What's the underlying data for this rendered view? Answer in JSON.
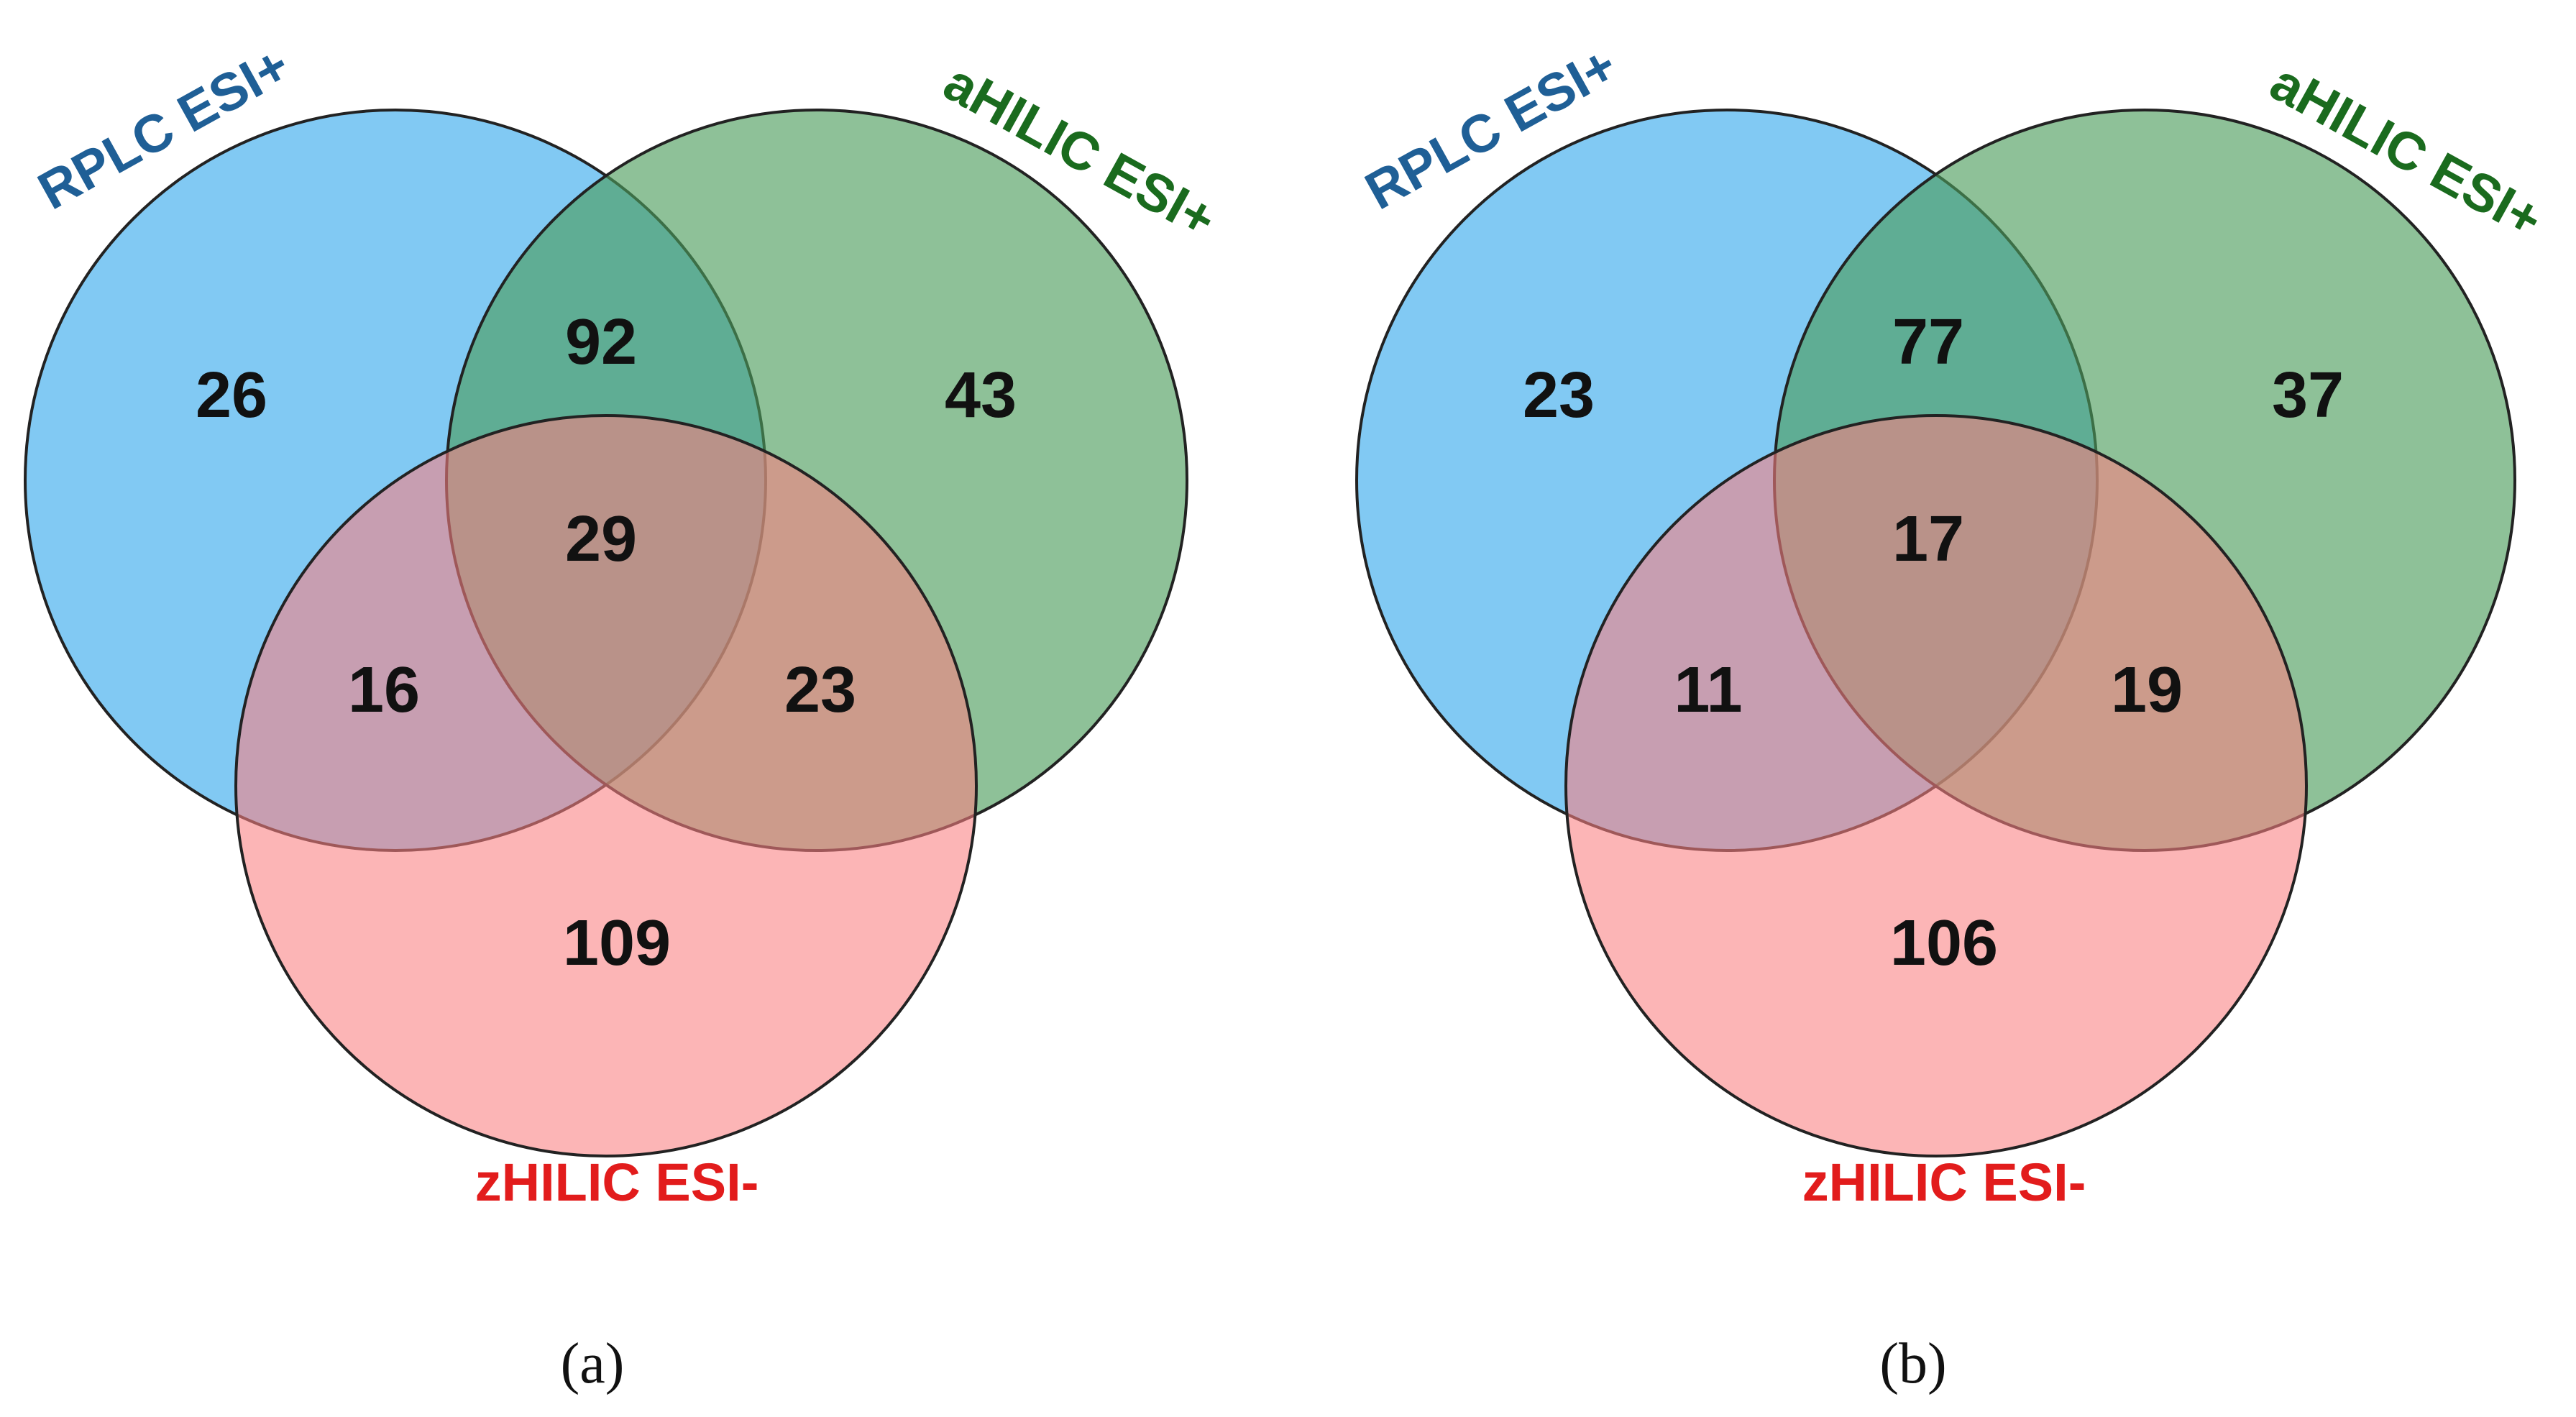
{
  "colors": {
    "rplc_fill": "#57b7ef",
    "ahilic_fill": "#4c9d5c",
    "zhilic_fill": "#fa7f82",
    "rplc_label": "#1f5f96",
    "ahilic_label": "#1a6b1e",
    "zhilic_label": "#e21c1c"
  },
  "panels": [
    {
      "caption": "(a)",
      "labels": {
        "rplc": "RPLC ESI+",
        "ahilic": "aHILIC ESI+",
        "zhilic": "zHILIC ESI-"
      },
      "counts": {
        "rplc_only": "26",
        "ahilic_only": "43",
        "zhilic_only": "109",
        "rplc_ahilic": "92",
        "rplc_zhilic": "16",
        "ahilic_zhilic": "23",
        "all": "29"
      }
    },
    {
      "caption": "(b)",
      "labels": {
        "rplc": "RPLC ESI+",
        "ahilic": "aHILIC ESI+",
        "zhilic": "zHILIC ESI-"
      },
      "counts": {
        "rplc_only": "23",
        "ahilic_only": "37",
        "zhilic_only": "106",
        "rplc_ahilic": "77",
        "rplc_zhilic": "11",
        "ahilic_zhilic": "19",
        "all": "17"
      }
    }
  ]
}
